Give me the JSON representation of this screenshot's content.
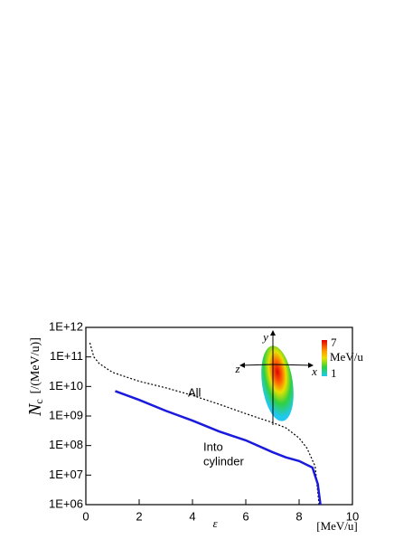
{
  "chart_data": {
    "type": "line",
    "log_scale_y": true,
    "xlim": [
      0,
      10
    ],
    "xticks": [
      0,
      2,
      4,
      6,
      8,
      10
    ],
    "ylim": [
      1000000,
      1000000000000
    ],
    "yticks": [
      {
        "value": 1000000,
        "label": "1E+06"
      },
      {
        "value": 10000000,
        "label": "1E+07"
      },
      {
        "value": 100000000,
        "label": "1E+08"
      },
      {
        "value": 1000000000,
        "label": "1E+09"
      },
      {
        "value": 10000000000,
        "label": "1E+10"
      },
      {
        "value": 100000000000,
        "label": "1E+11"
      },
      {
        "value": 1000000000000,
        "label": "1E+12"
      }
    ],
    "xlabel": {
      "symbol": "ε",
      "unit": "[MeV/u]"
    },
    "ylabel": {
      "symbol": "N",
      "subscript": "c",
      "unit": "[/(MeV/u)]"
    },
    "annotations": [
      {
        "lines": [
          "All"
        ]
      },
      {
        "lines": [
          "Into",
          "cylinder"
        ]
      }
    ],
    "inset": {
      "axis_labels": [
        "y",
        "z",
        "x"
      ],
      "colorbar_labels": [
        "7",
        "MeV/u",
        "1"
      ]
    },
    "series": [
      {
        "color": "#000000",
        "dash": "2,2",
        "x": [
          0.15,
          0.3,
          0.5,
          1,
          2,
          3,
          4,
          5,
          6,
          7,
          7.5,
          8,
          8.3,
          8.6,
          8.75
        ],
        "values": [
          300000000000,
          100000000000,
          60000000000,
          30000000000,
          15000000000,
          9000000000,
          5000000000,
          2500000000,
          1200000000,
          600000000,
          400000000,
          180000000,
          80000000,
          20000000,
          1000000
        ]
      },
      {
        "color": "#1a1adc",
        "dash": "none",
        "x": [
          1.1,
          2,
          3,
          4,
          5,
          6,
          7,
          7.5,
          8,
          8.5,
          8.7,
          8.8
        ],
        "values": [
          7000000000,
          3500000000,
          1500000000,
          700000000,
          300000000,
          150000000,
          60000000,
          40000000,
          30000000,
          18000000,
          5000000,
          1000000
        ]
      }
    ]
  }
}
